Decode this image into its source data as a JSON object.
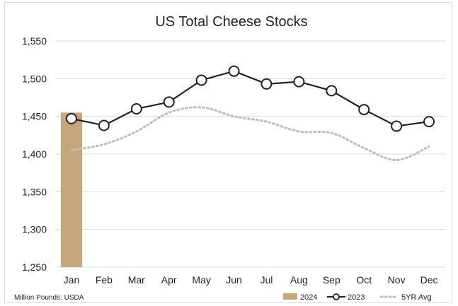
{
  "chart_data": {
    "type": "bar",
    "title": "US Total Cheese Stocks",
    "source_note": "Million Pounds: USDA",
    "categories": [
      "Jan",
      "Feb",
      "Mar",
      "Apr",
      "May",
      "Jun",
      "Jul",
      "Aug",
      "Sep",
      "Oct",
      "Nov",
      "Dec"
    ],
    "ylim": [
      1250,
      1550
    ],
    "yticks": [
      1250,
      1300,
      1350,
      1400,
      1450,
      1500,
      1550
    ],
    "ytick_labels": [
      "1,250",
      "1,300",
      "1,350",
      "1,400",
      "1,450",
      "1,500",
      "1,550"
    ],
    "grid": true,
    "legend_position": "bottom-right",
    "series": [
      {
        "name": "2024",
        "type": "bar",
        "color": "#c4a77b",
        "values": [
          1455,
          null,
          null,
          null,
          null,
          null,
          null,
          null,
          null,
          null,
          null,
          null
        ]
      },
      {
        "name": "2023",
        "type": "line-marker",
        "color": "#222222",
        "values": [
          1447,
          1438,
          1460,
          1469,
          1498,
          1510,
          1493,
          1496,
          1484,
          1459,
          1437,
          1443
        ]
      },
      {
        "name": "5YR Avg",
        "type": "dotted-line",
        "color": "#bdbdbd",
        "values": [
          1405,
          1413,
          1430,
          1455,
          1462,
          1450,
          1443,
          1430,
          1428,
          1408,
          1392,
          1410
        ]
      }
    ]
  }
}
